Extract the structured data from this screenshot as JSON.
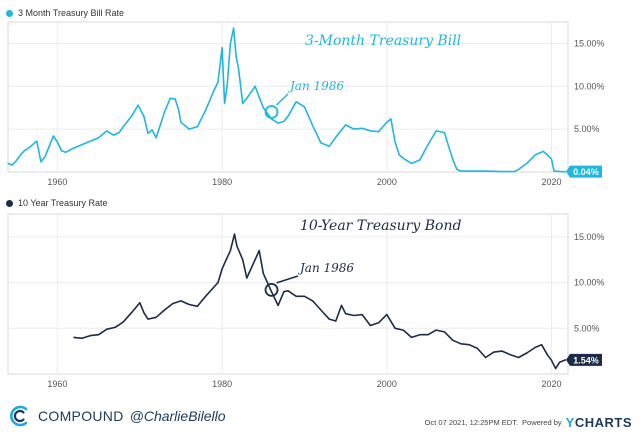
{
  "colors": {
    "bill": "#1fb7e0",
    "bond": "#1c2b48",
    "grid": "#e6e6e6",
    "brand": "#1b3b5a"
  },
  "chart_data": [
    {
      "type": "line",
      "legend": "3 Month Treasury Bill Rate",
      "title": "3-Month Treasury Bill",
      "annotation": "Jan 1986",
      "annotation_point": [
        1986.0,
        7.0
      ],
      "last_value_label": "0.04%",
      "xlim": [
        1954,
        2022
      ],
      "ylim": [
        0,
        17.5
      ],
      "x_ticks": [
        1960,
        1980,
        2000,
        2020
      ],
      "x_tick_labels": [
        "1960",
        "1980",
        "2000",
        "2020"
      ],
      "y_ticks": [
        5,
        10,
        15
      ],
      "y_tick_labels": [
        "5.00%",
        "10.00%",
        "15.00%"
      ],
      "x": [
        1954.0,
        1954.5,
        1955.0,
        1955.5,
        1956.0,
        1956.5,
        1957.0,
        1957.5,
        1958.0,
        1958.5,
        1959.0,
        1959.5,
        1960.0,
        1960.5,
        1961.0,
        1962.0,
        1963.0,
        1964.0,
        1965.0,
        1966.0,
        1966.8,
        1967.5,
        1968.0,
        1969.0,
        1969.8,
        1970.5,
        1971.0,
        1971.5,
        1972.0,
        1973.0,
        1973.7,
        1974.3,
        1974.7,
        1975.0,
        1976.0,
        1977.0,
        1978.0,
        1979.0,
        1979.5,
        1980.0,
        1980.3,
        1980.6,
        1981.0,
        1981.4,
        1981.7,
        1982.0,
        1982.5,
        1983.0,
        1984.0,
        1984.6,
        1985.0,
        1986.0,
        1986.8,
        1987.5,
        1988.0,
        1989.0,
        1990.0,
        1991.0,
        1992.0,
        1993.0,
        1994.0,
        1995.0,
        1996.0,
        1997.0,
        1998.0,
        1999.0,
        2000.0,
        2000.5,
        2001.0,
        2001.5,
        2002.0,
        2003.0,
        2004.0,
        2005.0,
        2006.0,
        2007.0,
        2007.5,
        2008.0,
        2008.5,
        2009.0,
        2010.0,
        2012.0,
        2014.0,
        2015.5,
        2016.0,
        2017.0,
        2018.0,
        2019.0,
        2019.5,
        2020.0,
        2020.3,
        2021.0,
        2021.7
      ],
      "values": [
        1.0,
        0.8,
        1.3,
        2.0,
        2.5,
        2.8,
        3.2,
        3.6,
        1.2,
        1.8,
        3.0,
        4.2,
        3.5,
        2.5,
        2.3,
        2.8,
        3.2,
        3.6,
        4.0,
        4.8,
        4.3,
        4.6,
        5.3,
        6.5,
        7.8,
        6.5,
        4.5,
        4.9,
        4.0,
        7.0,
        8.6,
        8.5,
        7.3,
        5.8,
        5.0,
        5.3,
        7.2,
        9.5,
        10.5,
        14.5,
        8.0,
        10.0,
        15.0,
        16.8,
        13.5,
        12.0,
        8.0,
        8.6,
        10.0,
        8.5,
        7.5,
        6.2,
        5.7,
        5.9,
        6.5,
        8.2,
        7.6,
        5.4,
        3.4,
        3.0,
        4.3,
        5.5,
        5.0,
        5.1,
        4.8,
        4.7,
        5.8,
        6.2,
        3.5,
        2.0,
        1.6,
        1.0,
        1.4,
        3.2,
        4.8,
        4.6,
        3.0,
        1.5,
        0.3,
        0.1,
        0.1,
        0.1,
        0.05,
        0.05,
        0.3,
        1.0,
        2.0,
        2.4,
        2.0,
        1.5,
        0.1,
        0.05,
        0.04
      ]
    },
    {
      "type": "line",
      "legend": "10 Year Treasury Rate",
      "title": "10-Year Treasury Bond",
      "annotation": "Jan 1986",
      "annotation_point": [
        1986.0,
        9.2
      ],
      "last_value_label": "1.54%",
      "xlim": [
        1954,
        2022
      ],
      "ylim": [
        0,
        17.5
      ],
      "x_ticks": [
        1960,
        1980,
        2000,
        2020
      ],
      "x_tick_labels": [
        "1960",
        "1980",
        "2000",
        "2020"
      ],
      "y_ticks": [
        5,
        10,
        15
      ],
      "y_tick_labels": [
        "5.00%",
        "10.00%",
        "15.00%"
      ],
      "x": [
        1962.0,
        1963.0,
        1964.0,
        1965.0,
        1966.0,
        1967.0,
        1968.0,
        1969.0,
        1970.0,
        1970.5,
        1971.0,
        1972.0,
        1973.0,
        1974.0,
        1975.0,
        1976.0,
        1977.0,
        1978.0,
        1979.0,
        1979.5,
        1980.0,
        1980.5,
        1981.0,
        1981.5,
        1981.8,
        1982.5,
        1983.0,
        1984.0,
        1984.5,
        1985.0,
        1986.0,
        1986.8,
        1987.5,
        1988.0,
        1989.0,
        1990.0,
        1991.0,
        1992.0,
        1993.0,
        1993.8,
        1994.5,
        1995.0,
        1996.0,
        1997.0,
        1998.0,
        1999.0,
        2000.0,
        2001.0,
        2002.0,
        2003.0,
        2004.0,
        2005.0,
        2006.0,
        2007.0,
        2008.0,
        2009.0,
        2010.0,
        2011.0,
        2012.0,
        2013.0,
        2014.0,
        2015.0,
        2016.0,
        2017.0,
        2018.0,
        2018.8,
        2019.5,
        2020.0,
        2020.5,
        2021.0,
        2021.7
      ],
      "values": [
        4.0,
        3.9,
        4.2,
        4.3,
        4.9,
        5.1,
        5.7,
        6.7,
        7.8,
        6.7,
        6.0,
        6.2,
        7.0,
        7.7,
        8.0,
        7.6,
        7.4,
        8.5,
        9.5,
        10.0,
        11.5,
        12.5,
        13.5,
        15.3,
        14.0,
        12.5,
        10.5,
        12.5,
        13.5,
        11.0,
        9.0,
        7.5,
        9.0,
        9.1,
        8.5,
        8.5,
        8.0,
        7.0,
        6.0,
        5.8,
        7.5,
        6.6,
        6.4,
        6.5,
        5.3,
        5.6,
        6.5,
        5.0,
        4.8,
        4.0,
        4.3,
        4.3,
        4.8,
        4.6,
        3.7,
        3.3,
        3.2,
        2.8,
        1.8,
        2.4,
        2.5,
        2.1,
        1.8,
        2.3,
        2.9,
        3.2,
        2.1,
        1.5,
        0.6,
        1.3,
        1.54
      ]
    }
  ],
  "footer": {
    "brand": "COMPOUND",
    "handle": "@CharlieBilello",
    "date": "Oct 07 2021, 12:25PM EDT.",
    "powered": "Powered by",
    "ycharts_y": "Y",
    "ycharts_rest": "CHARTS"
  }
}
